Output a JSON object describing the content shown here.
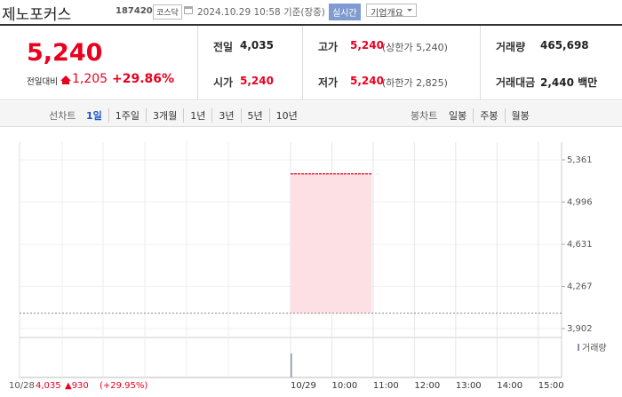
{
  "header": {
    "name": "제노포커스",
    "code": "187420",
    "market": "코스닥",
    "datetime": "2024.10.29 10:58 기준(장중)",
    "realtime": "실시간",
    "company_info": "기업개요"
  },
  "quote": {
    "price": "5,240",
    "change_label": "전일대비",
    "change": "1,205",
    "rate": "+29.86%"
  },
  "stats": [
    [
      {
        "label": "전일",
        "value": "4,035"
      },
      {
        "label": "고가",
        "value": "5,240",
        "sub": "(상한가 5,240)"
      },
      {
        "label": "거래량",
        "value": "465,698"
      }
    ],
    [
      {
        "label": "시가",
        "value": "5,240"
      },
      {
        "label": "저가",
        "value": "5,240",
        "sub": "(하한가 2,825)"
      },
      {
        "label": "거래대금",
        "value": "2,440 백만"
      }
    ]
  ],
  "tabs": {
    "line_label": "선차트",
    "line": [
      "1일",
      "1주일",
      "3개월",
      "1년",
      "3년",
      "5년",
      "10년"
    ],
    "candle_label": "봉차트",
    "candle": [
      "일봉",
      "주봉",
      "월봉"
    ]
  },
  "chart_data": {
    "type": "area",
    "x": [
      9,
      10.97
    ],
    "values": [
      5240,
      5240
    ],
    "base": 4035,
    "color": "#e8001e",
    "fill": "#fde0e3",
    "xlim": [
      9,
      15.5
    ],
    "ylim": [
      3902,
      5361
    ],
    "yticks": [
      {
        "value": 5361,
        "label": "5,361"
      },
      {
        "value": 4996,
        "label": "4,996"
      },
      {
        "value": 4631,
        "label": "4,631"
      },
      {
        "value": 4267,
        "label": "4,267"
      },
      {
        "value": 3902,
        "label": "3,902"
      }
    ],
    "xticks": [
      {
        "value": 9,
        "label": "10/29"
      },
      {
        "value": 10,
        "label": "10:00"
      },
      {
        "value": 11,
        "label": "11:00"
      },
      {
        "value": 12,
        "label": "12:00"
      },
      {
        "value": 13,
        "label": "13:00"
      },
      {
        "value": 14,
        "label": "14:00"
      },
      {
        "value": 15,
        "label": "15:00"
      }
    ],
    "grid": true,
    "volume": {
      "name": "거래량",
      "x": [
        9
      ],
      "values": [
        30000
      ],
      "ylim": [
        0,
        50000
      ],
      "color": "#8a8fb0"
    },
    "prev_day": {
      "date": "10/28",
      "close": "4,035",
      "change": "▲930",
      "rate": "(+29.95%)"
    }
  }
}
